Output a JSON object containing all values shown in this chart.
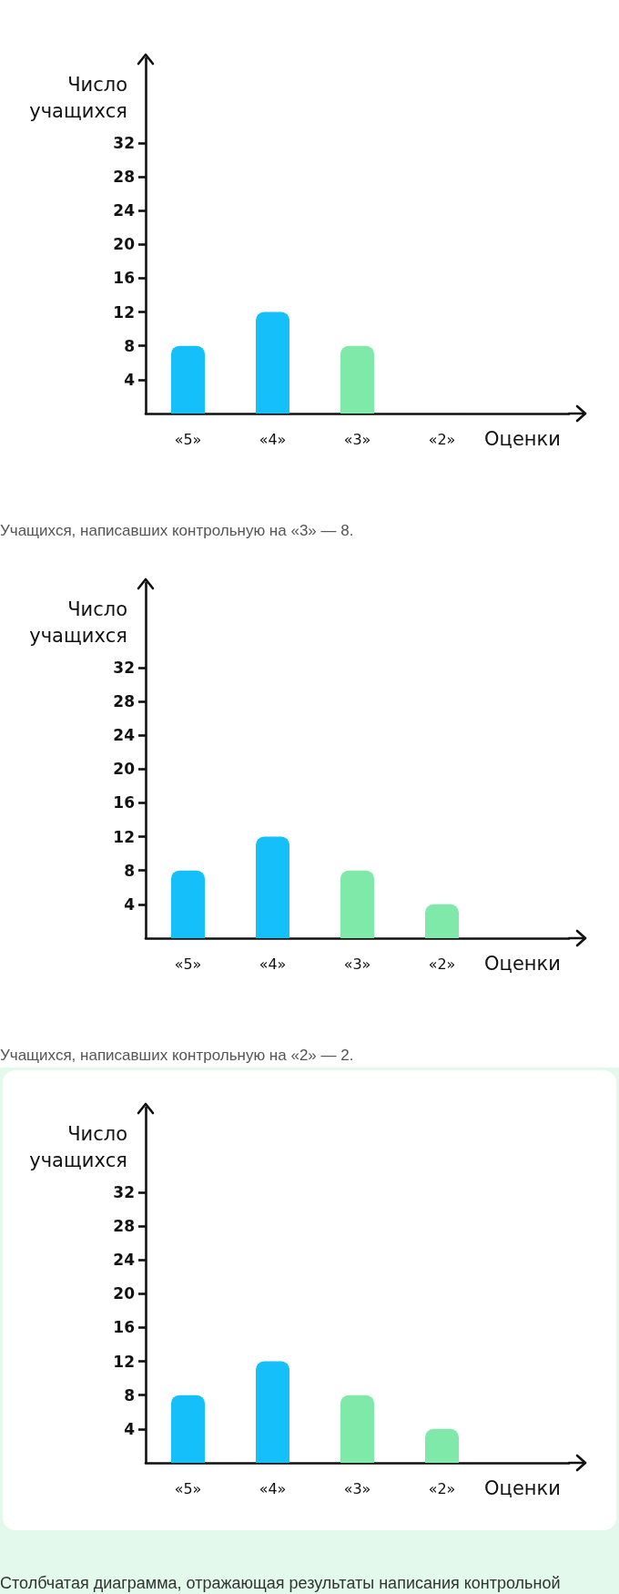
{
  "chart_data": [
    {
      "type": "bar",
      "categories": [
        "«5»",
        "«4»",
        "«3»",
        "«2»"
      ],
      "values": [
        8,
        12,
        8,
        null
      ],
      "colors": [
        "#14bffa",
        "#14bffa",
        "#7ee9a9",
        null
      ],
      "ylabel": "Число учащихся",
      "xlabel": "Оценки",
      "ylim": [
        0,
        42
      ],
      "yticks": [
        4,
        8,
        12,
        16,
        20,
        24,
        28,
        32
      ],
      "annotations": [
        "Учащихся, написавших контрольную на «3» — 8."
      ]
    },
    {
      "type": "bar",
      "categories": [
        "«5»",
        "«4»",
        "«3»",
        "«2»"
      ],
      "values": [
        8,
        12,
        8,
        4
      ],
      "colors": [
        "#14bffa",
        "#14bffa",
        "#7ee9a9",
        "#7ee9a9"
      ],
      "ylabel": "Число учащихся",
      "xlabel": "Оценки",
      "ylim": [
        0,
        42
      ],
      "yticks": [
        4,
        8,
        12,
        16,
        20,
        24,
        28,
        32
      ],
      "annotations": [
        "Учащихся, написавших контрольную на «2» — 2."
      ]
    },
    {
      "type": "bar",
      "categories": [
        "«5»",
        "«4»",
        "«3»",
        "«2»"
      ],
      "values": [
        8,
        12,
        8,
        4
      ],
      "colors": [
        "#14bffa",
        "#14bffa",
        "#7ee9a9",
        "#7ee9a9"
      ],
      "ylabel": "Число учащихся",
      "xlabel": "Оценки",
      "ylim": [
        0,
        42
      ],
      "yticks": [
        4,
        8,
        12,
        16,
        20,
        24,
        28,
        32
      ],
      "annotations": [
        "Столбчатая диаграмма, отражающая результаты написания контрольной"
      ]
    }
  ]
}
